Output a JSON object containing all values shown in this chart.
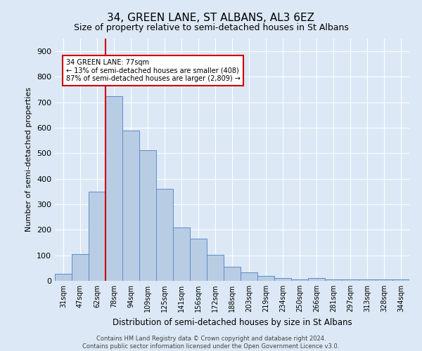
{
  "title": "34, GREEN LANE, ST ALBANS, AL3 6EZ",
  "subtitle": "Size of property relative to semi-detached houses in St Albans",
  "xlabel": "Distribution of semi-detached houses by size in St Albans",
  "ylabel": "Number of semi-detached properties",
  "categories": [
    "31sqm",
    "47sqm",
    "62sqm",
    "78sqm",
    "94sqm",
    "109sqm",
    "125sqm",
    "141sqm",
    "156sqm",
    "172sqm",
    "188sqm",
    "203sqm",
    "219sqm",
    "234sqm",
    "250sqm",
    "266sqm",
    "281sqm",
    "297sqm",
    "313sqm",
    "328sqm",
    "344sqm"
  ],
  "values": [
    28,
    105,
    350,
    725,
    590,
    513,
    360,
    210,
    165,
    103,
    55,
    32,
    18,
    10,
    5,
    10,
    5,
    5,
    5,
    5,
    5
  ],
  "bar_color": "#b8cce4",
  "bar_edge_color": "#5b8dc8",
  "annotation_text": "34 GREEN LANE: 77sqm\n← 13% of semi-detached houses are smaller (408)\n87% of semi-detached houses are larger (2,809) →",
  "annotation_box_color": "#ffffff",
  "annotation_box_edge_color": "#cc0000",
  "vline_color": "#cc0000",
  "ylim": [
    0,
    950
  ],
  "yticks": [
    0,
    100,
    200,
    300,
    400,
    500,
    600,
    700,
    800,
    900
  ],
  "background_color": "#dce8f5",
  "grid_color": "#ffffff",
  "title_fontsize": 11,
  "subtitle_fontsize": 9,
  "footer": "Contains HM Land Registry data © Crown copyright and database right 2024.\nContains public sector information licensed under the Open Government Licence v3.0."
}
